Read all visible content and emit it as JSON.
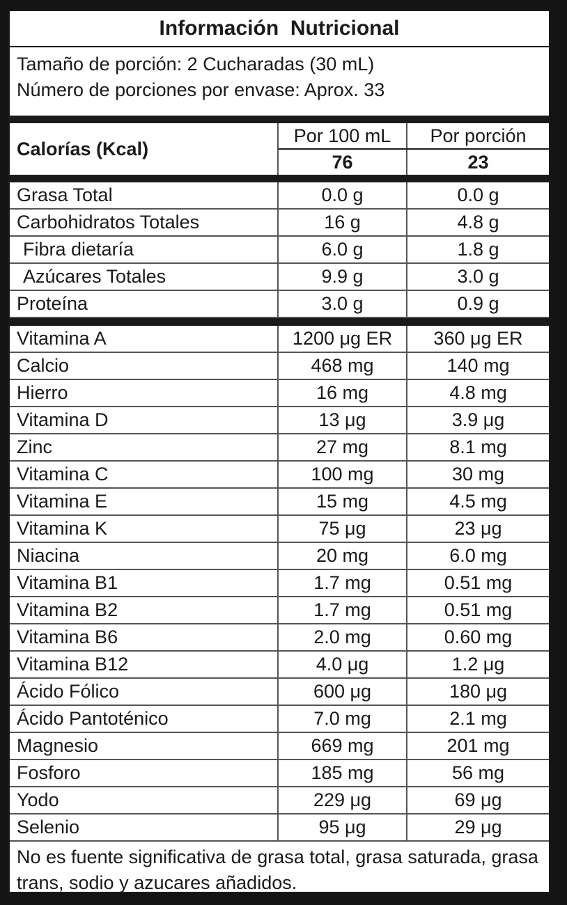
{
  "title": "Información  Nutricional",
  "serving": {
    "size": "Tamaño de porción: 2 Cucharadas (30 mL)",
    "count": "Número de porciones por envase: Aprox. 33"
  },
  "calories": {
    "label": "Calorías (Kcal)",
    "col1_header": "Por 100 mL",
    "col2_header": "Por porción",
    "col1_value": "76",
    "col2_value": "23"
  },
  "macros": [
    {
      "name": "Grasa Total",
      "per100": "0.0 g",
      "perServing": "0.0 g"
    },
    {
      "name": "Carbohidratos Totales",
      "per100": "16 g",
      "perServing": "4.8 g"
    },
    {
      "name": "Fibra dietaría",
      "per100": "6.0 g",
      "perServing": "1.8 g"
    },
    {
      "name": "Azúcares Totales",
      "per100": "9.9 g",
      "perServing": "3.0 g"
    },
    {
      "name": "Proteína",
      "per100": "3.0 g",
      "perServing": "0.9 g"
    }
  ],
  "micros": [
    {
      "name": "Vitamina A",
      "per100": "1200 μg ER",
      "perServing": "360 μg ER"
    },
    {
      "name": "Calcio",
      "per100": "468 mg",
      "perServing": "140 mg"
    },
    {
      "name": "Hierro",
      "per100": "16 mg",
      "perServing": "4.8 mg"
    },
    {
      "name": "Vitamina D",
      "per100": "13 μg",
      "perServing": "3.9 μg"
    },
    {
      "name": "Zinc",
      "per100": "27 mg",
      "perServing": "8.1 mg"
    },
    {
      "name": "Vitamina C",
      "per100": "100 mg",
      "perServing": "30 mg"
    },
    {
      "name": "Vitamina E",
      "per100": "15 mg",
      "perServing": "4.5 mg"
    },
    {
      "name": "Vitamina K",
      "per100": "75 μg",
      "perServing": "23 μg"
    },
    {
      "name": "Niacina",
      "per100": "20 mg",
      "perServing": "6.0 mg"
    },
    {
      "name": "Vitamina B1",
      "per100": "1.7 mg",
      "perServing": "0.51 mg"
    },
    {
      "name": "Vitamina B2",
      "per100": "1.7 mg",
      "perServing": "0.51 mg"
    },
    {
      "name": "Vitamina B6",
      "per100": "2.0 mg",
      "perServing": "0.60 mg"
    },
    {
      "name": "Vitamina B12",
      "per100": "4.0 μg",
      "perServing": "1.2 μg"
    },
    {
      "name": "Ácido Fólico",
      "per100": "600 μg",
      "perServing": "180 μg"
    },
    {
      "name": "Ácido Pantoténico",
      "per100": "7.0 mg",
      "perServing": "2.1 mg"
    },
    {
      "name": "Magnesio",
      "per100": "669 mg",
      "perServing": "201 mg"
    },
    {
      "name": "Fosforo",
      "per100": "185 mg",
      "perServing": "56 mg"
    },
    {
      "name": "Yodo",
      "per100": "229 μg",
      "perServing": "69 μg"
    },
    {
      "name": "Selenio",
      "per100": "95 μg",
      "perServing": "29 μg"
    }
  ],
  "footnote": "No es fuente significativa de grasa total, grasa saturada, grasa trans, sodio y azucares añadidos."
}
